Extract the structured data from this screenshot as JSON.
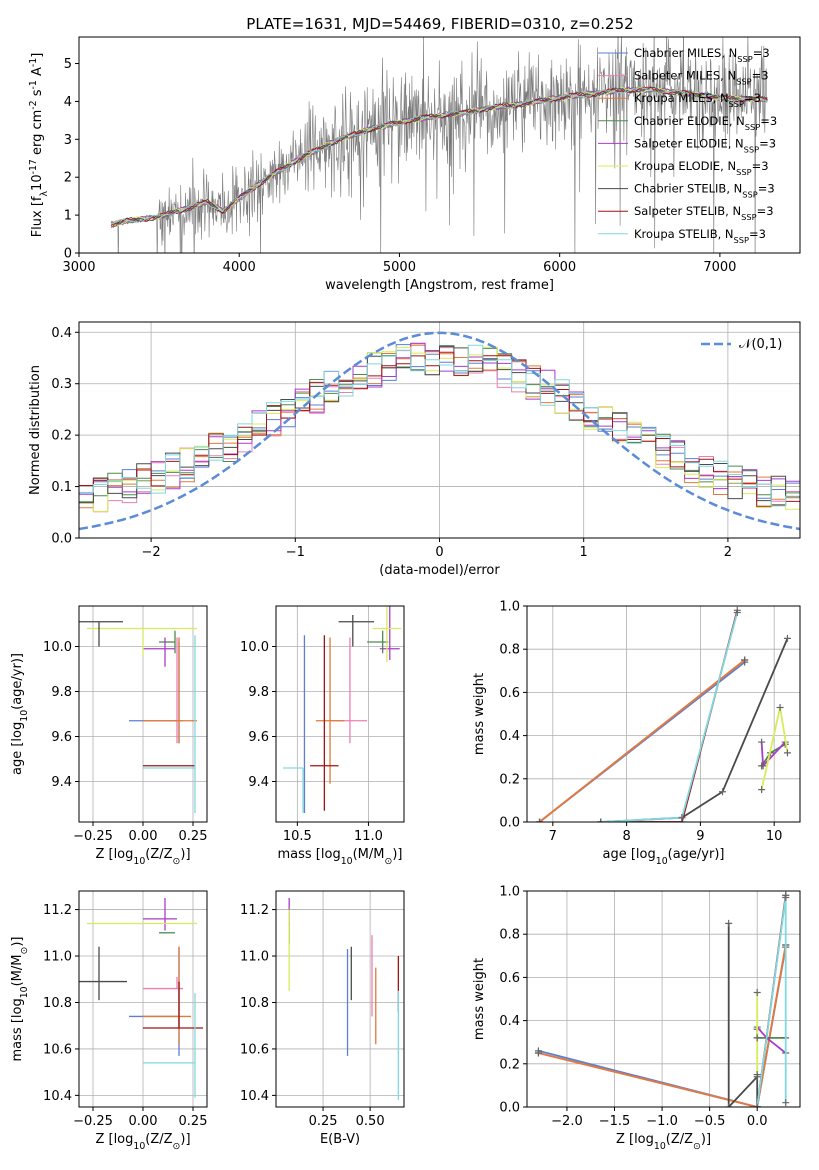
{
  "figure_title": "PLATE=1631, MJD=54469, FIBERID=0310, z=0.252",
  "models": [
    {
      "name": "Chabrier MILES, N$_{SSP}$=3",
      "color": "#5b7fd4"
    },
    {
      "name": "Salpeter MILES, N$_{SSP}$=3",
      "color": "#ea7fb3"
    },
    {
      "name": "Kroupa MILES, N$_{SSP}$=3",
      "color": "#e07a3a"
    },
    {
      "name": "Chabrier ELODIE, N$_{SSP}$=3",
      "color": "#4f8a4f"
    },
    {
      "name": "Salpeter ELODIE, N$_{SSP}$=3",
      "color": "#a93cc9"
    },
    {
      "name": "Kroupa ELODIE, N$_{SSP}$=3",
      "color": "#d8ec59"
    },
    {
      "name": "Chabrier STELIB, N$_{SSP}$=3",
      "color": "#4a4a4a"
    },
    {
      "name": "Salpeter STELIB, N$_{SSP}$=3",
      "color": "#a01414"
    },
    {
      "name": "Kroupa STELIB, N$_{SSP}$=3",
      "color": "#7fd9e0"
    }
  ],
  "chart_data": [
    {
      "id": "spectrum",
      "type": "line",
      "xlabel": "wavelength [Angstrom, rest frame]",
      "ylabel": "Flux [f$_\\lambda$10$^{-17}$ erg cm$^{-2}$ s$^{-1}$ A$^{-1}$]",
      "xlim": [
        3000,
        7500
      ],
      "ylim": [
        0,
        5.7
      ],
      "xticks": [
        3000,
        4000,
        5000,
        6000,
        7000
      ],
      "yticks": [
        0,
        1,
        2,
        3,
        4,
        5
      ],
      "grid": false,
      "legend": "right",
      "model_curve": {
        "x": [
          3200,
          3300,
          3400,
          3500,
          3600,
          3700,
          3800,
          3900,
          4000,
          4200,
          4400,
          4600,
          4800,
          5000,
          5200,
          5400,
          5600,
          5800,
          6000,
          6200,
          6400,
          6600,
          6800,
          7000,
          7300
        ],
        "y": [
          0.75,
          0.85,
          0.9,
          0.95,
          1.1,
          1.2,
          1.35,
          1.1,
          1.45,
          2.05,
          2.55,
          2.95,
          3.25,
          3.45,
          3.6,
          3.7,
          3.85,
          3.95,
          4.1,
          4.2,
          4.3,
          4.3,
          4.2,
          4.1,
          4.05
        ]
      },
      "data_range": [
        3200,
        7300
      ]
    },
    {
      "id": "residuals",
      "type": "line",
      "xlabel": "(data-model)/error",
      "ylabel": "Normed distribution",
      "xlim": [
        -2.5,
        2.5
      ],
      "ylim": [
        0,
        0.42
      ],
      "xticks": [
        -2,
        -1,
        0,
        1,
        2
      ],
      "yticks": [
        0,
        0.1,
        0.2,
        0.3,
        0.4
      ],
      "grid": true,
      "legend": "top-right",
      "gaussian": {
        "name": "$\\mathcal{N}(0,1)$",
        "mu": 0,
        "sigma": 1,
        "color": "#5b8bd9"
      },
      "histogram_bin_width": 0.1
    },
    {
      "id": "age_vs_Z",
      "type": "scatter",
      "xlabel": "Z [log$_{10}$(Z/Z$_\\odot$)]",
      "ylabel": "age  [log$_{10}$(age/yr)]",
      "xlim": [
        -0.32,
        0.32
      ],
      "ylim": [
        9.22,
        10.18
      ],
      "xticks": [
        -0.25,
        0.0,
        0.25
      ],
      "yticks": [
        9.4,
        9.6,
        9.8,
        10.0
      ],
      "grid": true,
      "points": [
        {
          "model": 0,
          "x": 0.18,
          "y": 9.67,
          "xerr": [
            0.25,
            0.0
          ],
          "yerr": [
            0.1,
            0.35
          ]
        },
        {
          "model": 1,
          "x": 0.17,
          "y": 9.67,
          "xerr": [
            0.17,
            0.03
          ],
          "yerr": [
            0.1,
            0.37
          ]
        },
        {
          "model": 2,
          "x": 0.18,
          "y": 9.67,
          "xerr": [
            0.18,
            0.09
          ],
          "yerr": [
            0.1,
            0.37
          ]
        },
        {
          "model": 3,
          "x": 0.16,
          "y": 10.02,
          "xerr": [
            0.08,
            0.0
          ],
          "yerr": [
            0.05,
            0.05
          ]
        },
        {
          "model": 4,
          "x": 0.11,
          "y": 9.99,
          "xerr": [
            0.11,
            0.05
          ],
          "yerr": [
            0.08,
            0.05
          ]
        },
        {
          "model": 5,
          "x": 0.0,
          "y": 10.08,
          "xerr": [
            0.28,
            0.27
          ],
          "yerr": [
            0.12,
            0.0
          ]
        },
        {
          "model": 6,
          "x": -0.22,
          "y": 10.11,
          "xerr": [
            0.1,
            0.12
          ],
          "yerr": [
            0.11,
            0.0
          ]
        },
        {
          "model": 7,
          "x": 0.0,
          "y": 9.47,
          "xerr": [
            0.0,
            0.26
          ],
          "yerr": [
            0.0,
            0.0
          ]
        },
        {
          "model": 8,
          "x": 0.26,
          "y": 9.46,
          "xerr": [
            0.26,
            0.0
          ],
          "yerr": [
            0.2,
            0.59
          ]
        }
      ]
    },
    {
      "id": "age_vs_mass",
      "type": "scatter",
      "xlabel": "mass [log$_{10}$(M/M$_\\odot$)]",
      "ylabel": "",
      "xlim": [
        10.35,
        11.25
      ],
      "ylim": [
        9.22,
        10.18
      ],
      "xticks": [
        10.5,
        11.0
      ],
      "yticks": [
        9.4,
        9.6,
        9.8,
        10.0
      ],
      "grid": true,
      "points": [
        {
          "model": 0,
          "x": 10.55,
          "y": 9.46,
          "xerr": [
            0.0,
            0.0
          ],
          "yerr": [
            0.2,
            0.59
          ]
        },
        {
          "model": 1,
          "x": 10.87,
          "y": 9.67,
          "xerr": [
            0.14,
            0.12
          ],
          "yerr": [
            0.1,
            0.37
          ]
        },
        {
          "model": 2,
          "x": 10.73,
          "y": 9.67,
          "xerr": [
            0.1,
            0.1
          ],
          "yerr": [
            0.28,
            0.37
          ]
        },
        {
          "model": 3,
          "x": 11.1,
          "y": 10.02,
          "xerr": [
            0.11,
            0.04
          ],
          "yerr": [
            0.05,
            0.05
          ]
        },
        {
          "model": 4,
          "x": 11.15,
          "y": 9.99,
          "xerr": [
            0.07,
            0.07
          ],
          "yerr": [
            0.05,
            0.25
          ]
        },
        {
          "model": 5,
          "x": 11.13,
          "y": 10.08,
          "xerr": [
            0.1,
            0.1
          ],
          "yerr": [
            0.15,
            0.2
          ]
        },
        {
          "model": 6,
          "x": 10.89,
          "y": 10.11,
          "xerr": [
            0.1,
            0.15
          ],
          "yerr": [
            0.11,
            0.03
          ]
        },
        {
          "model": 7,
          "x": 10.69,
          "y": 9.47,
          "xerr": [
            0.1,
            0.1
          ],
          "yerr": [
            0.2,
            0.58
          ]
        },
        {
          "model": 8,
          "x": 10.54,
          "y": 9.46,
          "xerr": [
            0.14,
            0.0
          ],
          "yerr": [
            0.2,
            0.0
          ]
        }
      ]
    },
    {
      "id": "weight_vs_age",
      "type": "line",
      "xlabel": "age  [log$_{10}$(age/yr)]",
      "ylabel": "mass weight",
      "xlim": [
        6.65,
        10.35
      ],
      "ylim": [
        0,
        1.0
      ],
      "xticks": [
        7,
        8,
        9,
        10
      ],
      "yticks": [
        0.0,
        0.2,
        0.4,
        0.6,
        0.8,
        1.0
      ],
      "grid": true,
      "series": [
        {
          "model": 0,
          "x": [
            6.82,
            9.6
          ],
          "y": [
            0.0,
            0.74
          ]
        },
        {
          "model": 1,
          "x": [
            6.82,
            9.6
          ],
          "y": [
            0.0,
            0.75
          ]
        },
        {
          "model": 2,
          "x": [
            6.82,
            9.6
          ],
          "y": [
            0.0,
            0.75
          ]
        },
        {
          "model": 3,
          "x": [
            9.83,
            9.95,
            10.15
          ],
          "y": [
            0.26,
            0.32,
            0.36
          ]
        },
        {
          "model": 4,
          "x": [
            9.83,
            9.85,
            10.15
          ],
          "y": [
            0.37,
            0.26,
            0.37
          ]
        },
        {
          "model": 5,
          "x": [
            9.83,
            10.08,
            10.18
          ],
          "y": [
            0.15,
            0.53,
            0.32
          ]
        },
        {
          "model": 6,
          "x": [
            7.65,
            8.75,
            9.3,
            10.18
          ],
          "y": [
            0.0,
            0.02,
            0.14,
            0.85
          ]
        },
        {
          "model": 7,
          "x": [
            7.65,
            8.75,
            9.5
          ],
          "y": [
            0.0,
            0.0,
            0.98
          ]
        },
        {
          "model": 8,
          "x": [
            7.65,
            8.75,
            9.5
          ],
          "y": [
            0.0,
            0.02,
            0.97
          ]
        }
      ]
    },
    {
      "id": "mass_vs_Z",
      "type": "scatter",
      "xlabel": "Z [log$_{10}$(Z/Z$_\\odot$)]",
      "ylabel": "mass [log$_{10}$(M/M$_\\odot$)]",
      "xlim": [
        -0.32,
        0.32
      ],
      "ylim": [
        10.35,
        11.28
      ],
      "xticks": [
        -0.25,
        0.0,
        0.25
      ],
      "yticks": [
        10.4,
        10.6,
        10.8,
        11.0,
        11.2
      ],
      "grid": true,
      "points": [
        {
          "model": 0,
          "x": 0.18,
          "y": 10.74,
          "xerr": [
            0.25,
            0.0
          ],
          "yerr": [
            0.17,
            0.3
          ]
        },
        {
          "model": 1,
          "x": 0.17,
          "y": 10.86,
          "xerr": [
            0.17,
            0.03
          ],
          "yerr": [
            0.0,
            0.05
          ]
        },
        {
          "model": 2,
          "x": 0.18,
          "y": 10.74,
          "xerr": [
            0.18,
            0.06
          ],
          "yerr": [
            0.12,
            0.3
          ]
        },
        {
          "model": 3,
          "x": 0.16,
          "y": 11.1,
          "xerr": [
            0.08,
            0.0
          ],
          "yerr": [
            0.0,
            0.0
          ]
        },
        {
          "model": 4,
          "x": 0.11,
          "y": 11.16,
          "xerr": [
            0.11,
            0.06
          ],
          "yerr": [
            0.05,
            0.09
          ]
        },
        {
          "model": 5,
          "x": 0.0,
          "y": 11.14,
          "xerr": [
            0.28,
            0.27
          ],
          "yerr": [
            0.0,
            0.0
          ]
        },
        {
          "model": 6,
          "x": -0.22,
          "y": 10.89,
          "xerr": [
            0.1,
            0.14
          ],
          "yerr": [
            0.08,
            0.15
          ]
        },
        {
          "model": 7,
          "x": 0.18,
          "y": 10.69,
          "xerr": [
            0.18,
            0.12
          ],
          "yerr": [
            0.0,
            0.2
          ]
        },
        {
          "model": 8,
          "x": 0.26,
          "y": 10.54,
          "xerr": [
            0.26,
            0.0
          ],
          "yerr": [
            0.15,
            0.3
          ]
        }
      ]
    },
    {
      "id": "mass_vs_ebv",
      "type": "scatter",
      "xlabel": "E(B-V)",
      "ylabel": "",
      "xlim": [
        0.0,
        0.68
      ],
      "ylim": [
        10.35,
        11.28
      ],
      "xticks": [
        0.25,
        0.5
      ],
      "yticks": [
        10.4,
        10.6,
        10.8,
        11.0,
        11.2
      ],
      "grid": true,
      "points": [
        {
          "model": 0,
          "x": 0.38,
          "y": 10.8,
          "xerr": [
            0.0,
            0.0
          ],
          "yerr": [
            0.23,
            0.23
          ]
        },
        {
          "model": 1,
          "x": 0.51,
          "y": 10.86,
          "xerr": [
            0.0,
            0.0
          ],
          "yerr": [
            0.12,
            0.23
          ]
        },
        {
          "model": 2,
          "x": 0.53,
          "y": 10.73,
          "xerr": [
            0.0,
            0.0
          ],
          "yerr": [
            0.11,
            0.22
          ]
        },
        {
          "model": 3,
          "x": 0.07,
          "y": 11.1,
          "xerr": [
            0.0,
            0.0
          ],
          "yerr": [
            0.05,
            0.05
          ]
        },
        {
          "model": 4,
          "x": 0.07,
          "y": 11.16,
          "xerr": [
            0.0,
            0.0
          ],
          "yerr": [
            0.03,
            0.09
          ]
        },
        {
          "model": 5,
          "x": 0.07,
          "y": 11.0,
          "xerr": [
            0.0,
            0.0
          ],
          "yerr": [
            0.15,
            0.2
          ]
        },
        {
          "model": 6,
          "x": 0.4,
          "y": 10.9,
          "xerr": [
            0.0,
            0.0
          ],
          "yerr": [
            0.09,
            0.14
          ]
        },
        {
          "model": 7,
          "x": 0.65,
          "y": 10.88,
          "xerr": [
            0.0,
            0.0
          ],
          "yerr": [
            0.12,
            0.12
          ]
        },
        {
          "model": 8,
          "x": 0.65,
          "y": 10.6,
          "xerr": [
            0.0,
            0.0
          ],
          "yerr": [
            0.22,
            0.25
          ]
        }
      ]
    },
    {
      "id": "weight_vs_Z",
      "type": "line",
      "xlabel": "Z [log$_{10}$(Z/Z$_\\odot$)]",
      "ylabel": "mass weight",
      "xlim": [
        -2.42,
        0.45
      ],
      "ylim": [
        0,
        1.0
      ],
      "xticks": [
        -2.0,
        -1.5,
        -1.0,
        -0.5,
        0.0
      ],
      "yticks": [
        0.0,
        0.2,
        0.4,
        0.6,
        0.8,
        1.0
      ],
      "grid": true,
      "series": [
        {
          "model": 0,
          "x": [
            -2.3,
            0.0,
            0.3
          ],
          "y": [
            0.26,
            0.0,
            0.74
          ]
        },
        {
          "model": 1,
          "x": [
            -2.3,
            0.0,
            0.3
          ],
          "y": [
            0.25,
            0.0,
            0.75
          ]
        },
        {
          "model": 2,
          "x": [
            -2.3,
            0.0,
            0.3
          ],
          "y": [
            0.25,
            0.0,
            0.75
          ]
        },
        {
          "model": 3,
          "x": [
            0.0,
            0.0,
            0.3
          ],
          "y": [
            0.36,
            0.32,
            0.32
          ]
        },
        {
          "model": 4,
          "x": [
            0.0,
            0.1,
            0.3
          ],
          "y": [
            0.37,
            0.32,
            0.25
          ]
        },
        {
          "model": 5,
          "x": [
            0.0,
            0.0,
            0.0
          ],
          "y": [
            0.53,
            0.32,
            0.15
          ]
        },
        {
          "model": 6,
          "x": [
            -0.3,
            -0.3,
            0.0,
            0.0
          ],
          "y": [
            0.85,
            0.0,
            0.14,
            0.0
          ]
        },
        {
          "model": 7,
          "x": [
            0.0,
            0.3,
            0.3
          ],
          "y": [
            0.0,
            0.98,
            0.98
          ]
        },
        {
          "model": 8,
          "x": [
            0.0,
            0.3,
            0.3
          ],
          "y": [
            0.0,
            0.97,
            0.02
          ]
        }
      ]
    }
  ]
}
